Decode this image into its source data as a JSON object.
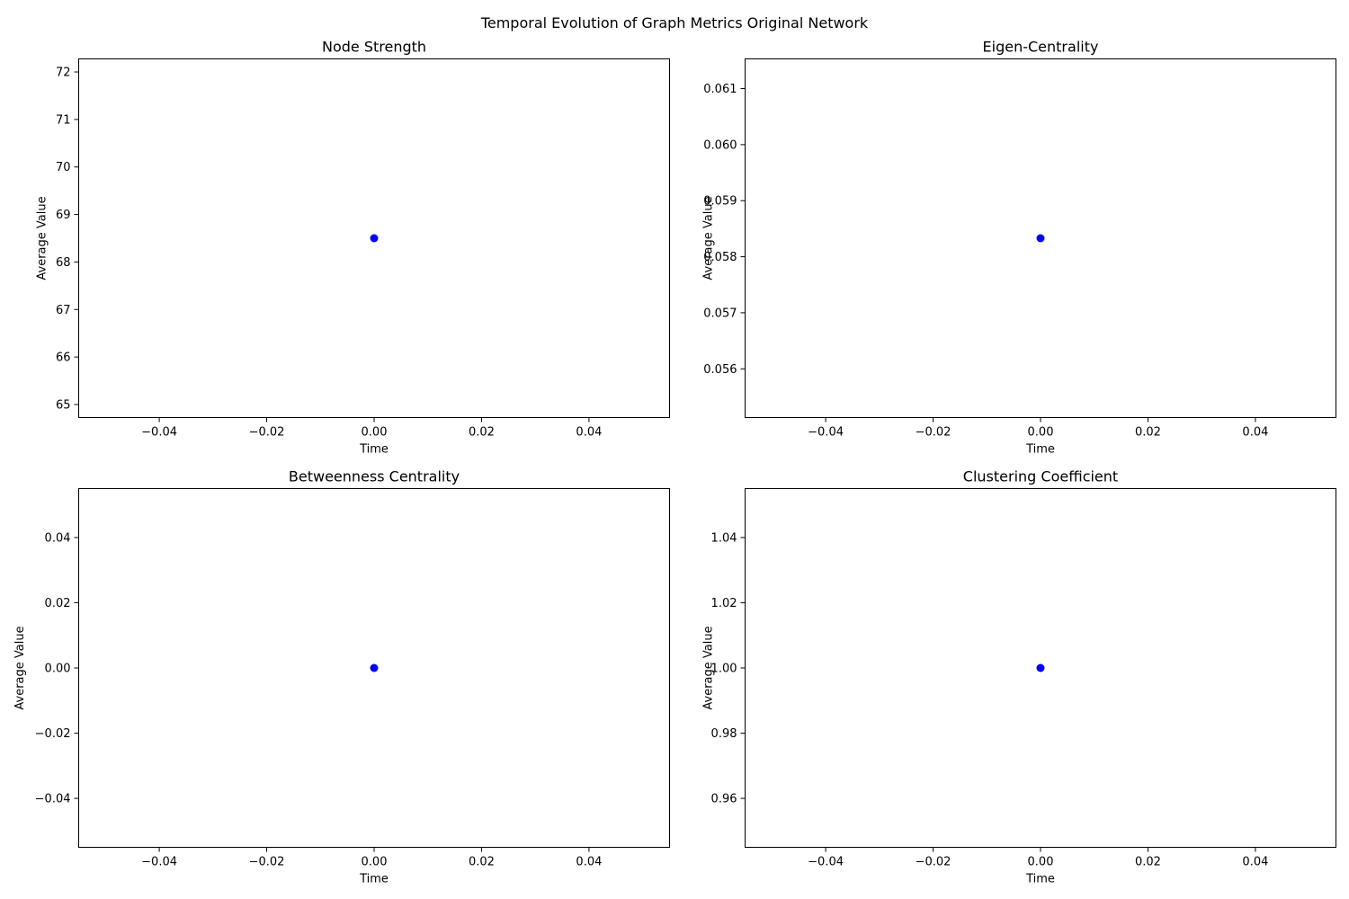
{
  "figure": {
    "title": "Temporal Evolution of Graph Metrics Original Network"
  },
  "chart_data": [
    {
      "type": "scatter",
      "title": "Node Strength",
      "xlabel": "Time",
      "ylabel": "Average Value",
      "xlim": [
        -0.055,
        0.055
      ],
      "ylim": [
        64.725,
        72.275
      ],
      "xticks": [
        "−0.04",
        "−0.02",
        "0.00",
        "0.02",
        "0.04"
      ],
      "xtick_values": [
        -0.04,
        -0.02,
        0.0,
        0.02,
        0.04
      ],
      "yticks": [
        "65",
        "66",
        "67",
        "68",
        "69",
        "70",
        "71",
        "72"
      ],
      "ytick_values": [
        65,
        66,
        67,
        68,
        69,
        70,
        71,
        72
      ],
      "x": [
        0.0
      ],
      "y": [
        68.5
      ],
      "color": "#0000ff",
      "grid": false
    },
    {
      "type": "scatter",
      "title": "Eigen-Centrality",
      "xlabel": "Time",
      "ylabel": "Average Value",
      "xlim": [
        -0.055,
        0.055
      ],
      "ylim": [
        0.05513,
        0.06153
      ],
      "xticks": [
        "−0.04",
        "−0.02",
        "0.00",
        "0.02",
        "0.04"
      ],
      "xtick_values": [
        -0.04,
        -0.02,
        0.0,
        0.02,
        0.04
      ],
      "yticks": [
        "0.056",
        "0.057",
        "0.058",
        "0.059",
        "0.060",
        "0.061"
      ],
      "ytick_values": [
        0.056,
        0.057,
        0.058,
        0.059,
        0.06,
        0.061
      ],
      "x": [
        0.0
      ],
      "y": [
        0.05833
      ],
      "color": "#0000ff",
      "grid": false
    },
    {
      "type": "scatter",
      "title": "Betweenness Centrality",
      "xlabel": "Time",
      "ylabel": "Average Value",
      "xlim": [
        -0.055,
        0.055
      ],
      "ylim": [
        -0.055,
        0.055
      ],
      "xticks": [
        "−0.04",
        "−0.02",
        "0.00",
        "0.02",
        "0.04"
      ],
      "xtick_values": [
        -0.04,
        -0.02,
        0.0,
        0.02,
        0.04
      ],
      "yticks": [
        "−0.04",
        "−0.02",
        "0.00",
        "0.02",
        "0.04"
      ],
      "ytick_values": [
        -0.04,
        -0.02,
        0.0,
        0.02,
        0.04
      ],
      "x": [
        0.0
      ],
      "y": [
        0.0
      ],
      "color": "#0000ff",
      "grid": false
    },
    {
      "type": "scatter",
      "title": "Clustering Coefficient",
      "xlabel": "Time",
      "ylabel": "Average Value",
      "xlim": [
        -0.055,
        0.055
      ],
      "ylim": [
        0.945,
        1.055
      ],
      "xticks": [
        "−0.04",
        "−0.02",
        "0.00",
        "0.02",
        "0.04"
      ],
      "xtick_values": [
        -0.04,
        -0.02,
        0.0,
        0.02,
        0.04
      ],
      "yticks": [
        "0.96",
        "0.98",
        "1.00",
        "1.02",
        "1.04"
      ],
      "ytick_values": [
        0.96,
        0.98,
        1.0,
        1.02,
        1.04
      ],
      "x": [
        0.0
      ],
      "y": [
        1.0
      ],
      "color": "#0000ff",
      "grid": false
    }
  ]
}
